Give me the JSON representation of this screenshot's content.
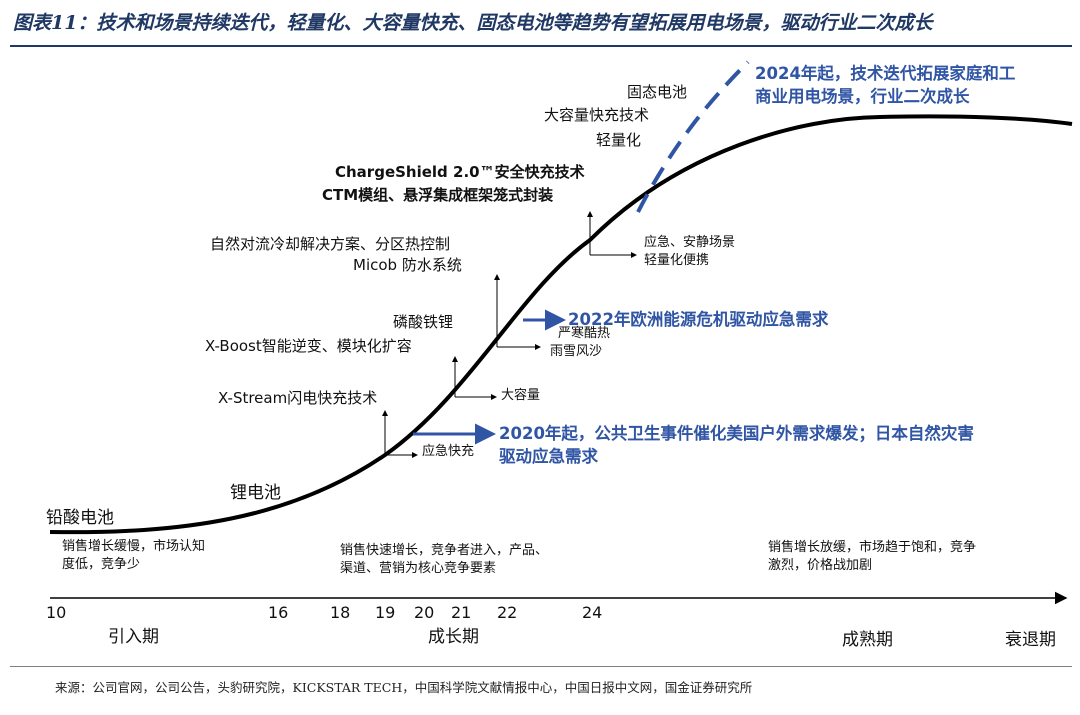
{
  "title": "图表11：技术和场景持续迭代，轻量化、大容量快充、固态电池等趋势有望拓展用电场景，驱动行业二次成长",
  "colors": {
    "title": "#1f3864",
    "curve": "#000000",
    "dashed_trend": "#2f55a4",
    "callout": "#2f55a4"
  },
  "years": [
    "10",
    "16",
    "18",
    "19",
    "20",
    "21",
    "22",
    "24"
  ],
  "periods": {
    "intro": "引入期",
    "growth": "成长期",
    "mature": "成熟期",
    "decline": "衰退期"
  },
  "stage_notes": {
    "intro": [
      "销售增长缓慢，市场认知",
      "度低，竞争少"
    ],
    "growth": [
      "销售快速增长，竞争者进入，产品、",
      "渠道、营销为核心竞争要素"
    ],
    "mature": [
      "销售增长放缓，市场趋于饱和，竞争",
      "激烈，价格战加剧"
    ]
  },
  "curve_labels": {
    "lead_acid": "铅酸电池",
    "lithium": "锂电池"
  },
  "tech": {
    "xstream": "X-Stream闪电快充技术",
    "xboost": "X-Boost智能逆变、模块化扩容",
    "lfp": "磷酸铁锂",
    "cooling": "自然对流冷却解决方案、分区热控制",
    "micob": "Micob  防水系统",
    "chargeshield": "ChargeShield 2.0™安全快充技术",
    "ctm": "CTM模组、悬浮集成框架笼式封装",
    "lightweight": "轻量化",
    "large_fast": "大容量快充技术",
    "solid_state": "固态电池"
  },
  "scenarios": {
    "emergency_fast": "应急快充",
    "large_capacity": "大容量",
    "harsh": [
      "严寒酷热",
      "雨雪风沙"
    ],
    "quiet": [
      "应急、安静场景",
      "轻量化便携"
    ]
  },
  "callouts": {
    "c2020": [
      "2020年起，公共卫生事件催化美国户外需求爆发；日本自然灾害",
      "驱动应急需求"
    ],
    "c2022": "2022年欧洲能源危机驱动应急需求",
    "c2024": [
      "2024年起，技术迭代拓展家庭和工",
      "商业用电场景，行业二次成长"
    ]
  },
  "source": "来源：公司官网，公司公告，头豹研究院，KICKSTAR TECH，中国科学院文献情报中心，中国日报中文网，国金证券研究所"
}
